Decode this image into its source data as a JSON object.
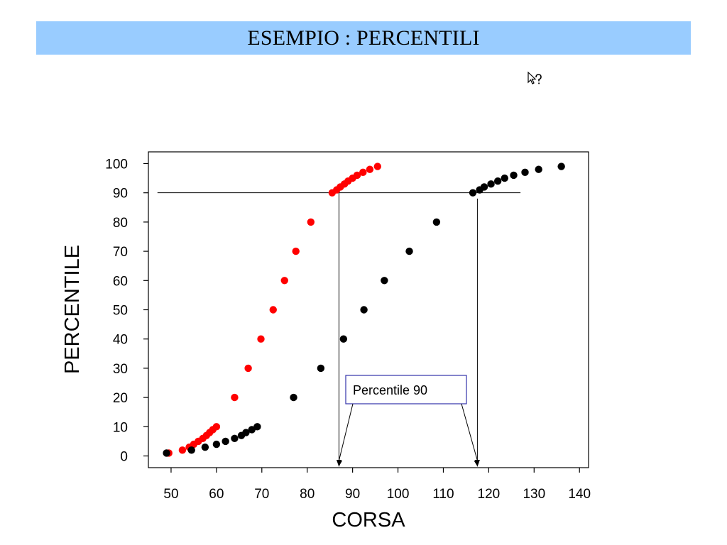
{
  "header": {
    "title": "ESEMPIO : PERCENTILI"
  },
  "icons": {
    "cursor": "cursor-help-icon"
  },
  "chart_data": {
    "type": "scatter",
    "title": "",
    "xlabel": "CORSA",
    "ylabel": "PERCENTILE",
    "xlim": [
      45,
      142
    ],
    "ylim": [
      -4,
      104
    ],
    "xticks": [
      50,
      60,
      70,
      80,
      90,
      100,
      110,
      120,
      130,
      140
    ],
    "yticks": [
      0,
      10,
      20,
      30,
      40,
      50,
      60,
      70,
      80,
      90,
      100
    ],
    "grid": false,
    "series": [
      {
        "color": "#ff0000",
        "points": [
          [
            49.5,
            1
          ],
          [
            52.5,
            2
          ],
          [
            54.0,
            3
          ],
          [
            55.0,
            4
          ],
          [
            56.0,
            5
          ],
          [
            57.0,
            6
          ],
          [
            57.8,
            7
          ],
          [
            58.5,
            8
          ],
          [
            59.2,
            9
          ],
          [
            60.0,
            10
          ],
          [
            64.0,
            20
          ],
          [
            67.0,
            30
          ],
          [
            69.8,
            40
          ],
          [
            72.5,
            50
          ],
          [
            75.0,
            60
          ],
          [
            77.5,
            70
          ],
          [
            80.8,
            80
          ],
          [
            85.5,
            90
          ],
          [
            86.5,
            91
          ],
          [
            87.3,
            92
          ],
          [
            88.2,
            93
          ],
          [
            89.0,
            94
          ],
          [
            90.0,
            95
          ],
          [
            91.0,
            96
          ],
          [
            92.3,
            97
          ],
          [
            93.8,
            98
          ],
          [
            95.5,
            99
          ]
        ]
      },
      {
        "color": "#000000",
        "points": [
          [
            49.0,
            1
          ],
          [
            54.5,
            2
          ],
          [
            57.5,
            3
          ],
          [
            60.0,
            4
          ],
          [
            62.0,
            5
          ],
          [
            64.0,
            6
          ],
          [
            65.5,
            7
          ],
          [
            66.5,
            8
          ],
          [
            67.8,
            9
          ],
          [
            69.0,
            10
          ],
          [
            77.0,
            20
          ],
          [
            83.0,
            30
          ],
          [
            88.0,
            40
          ],
          [
            92.5,
            50
          ],
          [
            97.0,
            60
          ],
          [
            102.5,
            70
          ],
          [
            108.5,
            80
          ],
          [
            116.5,
            90
          ],
          [
            118.0,
            91
          ],
          [
            119.0,
            92
          ],
          [
            120.5,
            93
          ],
          [
            122.0,
            94
          ],
          [
            123.5,
            95
          ],
          [
            125.5,
            96
          ],
          [
            128.0,
            97
          ],
          [
            131.0,
            98
          ],
          [
            136.0,
            99
          ]
        ]
      }
    ],
    "reference_line": {
      "y": 90,
      "x_from": 47,
      "x_to": 127
    },
    "marker_lines": [
      {
        "x": 87,
        "y_top": 90
      },
      {
        "x": 117.5,
        "y_top": 88
      }
    ],
    "annotation": {
      "text": "Percentile 90",
      "pointer_x": [
        87,
        117.5
      ]
    }
  }
}
